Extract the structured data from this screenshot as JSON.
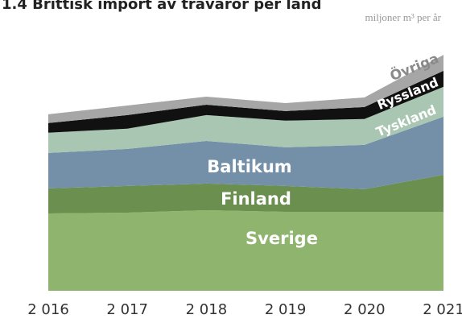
{
  "chart_data": {
    "type": "stacked_area",
    "title": "1.4 Brittisk import av trävaror per land",
    "unit_label": "miljoner m³ per år",
    "x": [
      2016,
      2017,
      2018,
      2019,
      2020,
      2021
    ],
    "xlim": [
      2016,
      2021
    ],
    "xticks": [
      {
        "value": 2016,
        "label": "2 016"
      },
      {
        "value": 2017,
        "label": "2 017"
      },
      {
        "value": 2018,
        "label": "2 018"
      },
      {
        "value": 2019,
        "label": "2 019"
      },
      {
        "value": 2020,
        "label": "2 020"
      },
      {
        "value": 2021,
        "label": "2 021"
      }
    ],
    "ylim": [
      0,
      10
    ],
    "series": [
      {
        "name": "Sverige",
        "color": "#8fb46d",
        "values": [
          2.9,
          2.93,
          3.02,
          2.96,
          2.96,
          2.96
        ]
      },
      {
        "name": "Finland",
        "color": "#6a8f4e",
        "values": [
          0.94,
          1.0,
          1.0,
          0.97,
          0.85,
          1.39
        ]
      },
      {
        "name": "Baltikum",
        "color": "#7390a8",
        "values": [
          1.33,
          1.39,
          1.6,
          1.45,
          1.66,
          2.18
        ]
      },
      {
        "name": "Tyskland",
        "color": "#a9c6b2",
        "values": [
          0.76,
          0.76,
          0.97,
          1.0,
          0.97,
          1.12
        ]
      },
      {
        "name": "Ryssland",
        "color": "#111111",
        "values": [
          0.36,
          0.51,
          0.39,
          0.36,
          0.45,
          0.6
        ]
      },
      {
        "name": "Övriga",
        "color": "#a6a6a6",
        "values": [
          0.33,
          0.36,
          0.3,
          0.3,
          0.36,
          0.6
        ]
      }
    ]
  }
}
